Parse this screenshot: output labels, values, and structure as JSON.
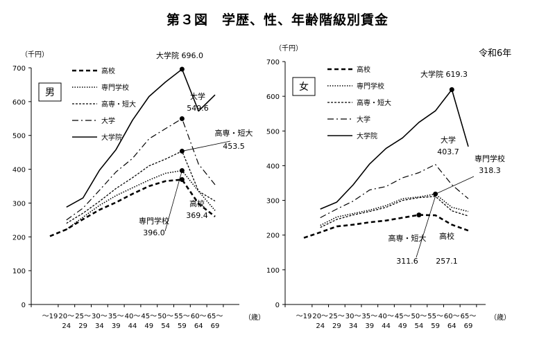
{
  "figure_title": "第３図　学歴、性、年齢階級別賃金",
  "era_note": "令和6年",
  "chart_data": [
    {
      "type": "line",
      "panel_label": "男",
      "unit_label": "（千円）",
      "x_unit_label": "（歳）",
      "categories": [
        "～19",
        "20～24",
        "25～29",
        "30～34",
        "35～39",
        "40～44",
        "45～49",
        "50～54",
        "55～59",
        "60～64",
        "65～69"
      ],
      "ylim": [
        0,
        700
      ],
      "yticks": [
        0,
        100,
        200,
        300,
        400,
        500,
        600,
        700
      ],
      "grid": false,
      "legend_position": "top-left",
      "series": [
        {
          "name": "高校",
          "style": "dashed-bold",
          "values": [
            202,
            222,
            252,
            280,
            302,
            327,
            350,
            365,
            369.4,
            298,
            260
          ]
        },
        {
          "name": "専門学校",
          "style": "dotted",
          "values": [
            null,
            222,
            258,
            293,
            322,
            345,
            368,
            388,
            396.0,
            335,
            278
          ]
        },
        {
          "name": "高専・短大",
          "style": "dashed",
          "values": [
            null,
            240,
            270,
            305,
            343,
            375,
            410,
            430,
            453.5,
            335,
            306
          ]
        },
        {
          "name": "大学",
          "style": "dash-dot",
          "values": [
            null,
            250,
            285,
            338,
            392,
            432,
            490,
            520,
            549.6,
            415,
            354
          ]
        },
        {
          "name": "大学院",
          "style": "solid",
          "values": [
            null,
            288,
            315,
            397,
            458,
            545,
            615,
            658,
            696.0,
            572,
            620
          ]
        }
      ],
      "annotations": [
        {
          "series": "大学院",
          "label": "大学院 696.0"
        },
        {
          "series": "大学",
          "label": "大学",
          "value_text": "549.6"
        },
        {
          "series": "高専・短大",
          "label": "高専・短大",
          "value_text": "453.5"
        },
        {
          "series": "専門学校",
          "label": "専門学校",
          "value_text": "396.0"
        },
        {
          "series": "高校",
          "label": "高校",
          "value_text": "369.4"
        }
      ]
    },
    {
      "type": "line",
      "panel_label": "女",
      "unit_label": "（千円）",
      "x_unit_label": "（歳）",
      "categories": [
        "～19",
        "20～24",
        "25～29",
        "30～34",
        "35～39",
        "40～44",
        "45～49",
        "50～54",
        "55～59",
        "60～64",
        "65～69"
      ],
      "ylim": [
        0,
        700
      ],
      "yticks": [
        0,
        100,
        200,
        300,
        400,
        500,
        600,
        700
      ],
      "grid": false,
      "legend_position": "top-left",
      "series": [
        {
          "name": "高校",
          "style": "dashed-bold",
          "values": [
            192,
            208,
            225,
            230,
            237,
            242,
            250,
            258,
            257.1,
            230,
            213
          ]
        },
        {
          "name": "専門学校",
          "style": "dotted",
          "values": [
            null,
            228,
            252,
            262,
            272,
            285,
            305,
            310,
            318.3,
            280,
            268
          ]
        },
        {
          "name": "高専・短大",
          "style": "dashed",
          "values": [
            null,
            222,
            245,
            258,
            268,
            280,
            300,
            308,
            311.6,
            270,
            255
          ]
        },
        {
          "name": "大学",
          "style": "dash-dot",
          "values": [
            null,
            250,
            275,
            298,
            330,
            340,
            365,
            380,
            403.7,
            345,
            305
          ]
        },
        {
          "name": "大学院",
          "style": "solid",
          "values": [
            null,
            275,
            295,
            345,
            405,
            450,
            480,
            525,
            558,
            619.3,
            455
          ]
        }
      ],
      "annotations": [
        {
          "series": "大学院",
          "label": "大学院",
          "value_text": "619.3"
        },
        {
          "series": "大学",
          "label": "大学",
          "value_text": "403.7"
        },
        {
          "series": "専門学校",
          "label": "専門学校",
          "value_text": "318.3"
        },
        {
          "series": "高専・短大",
          "label": "高専・短大",
          "value_text": "311.6"
        },
        {
          "series": "高校",
          "label": "高校",
          "value_text": "257.1"
        }
      ]
    }
  ]
}
